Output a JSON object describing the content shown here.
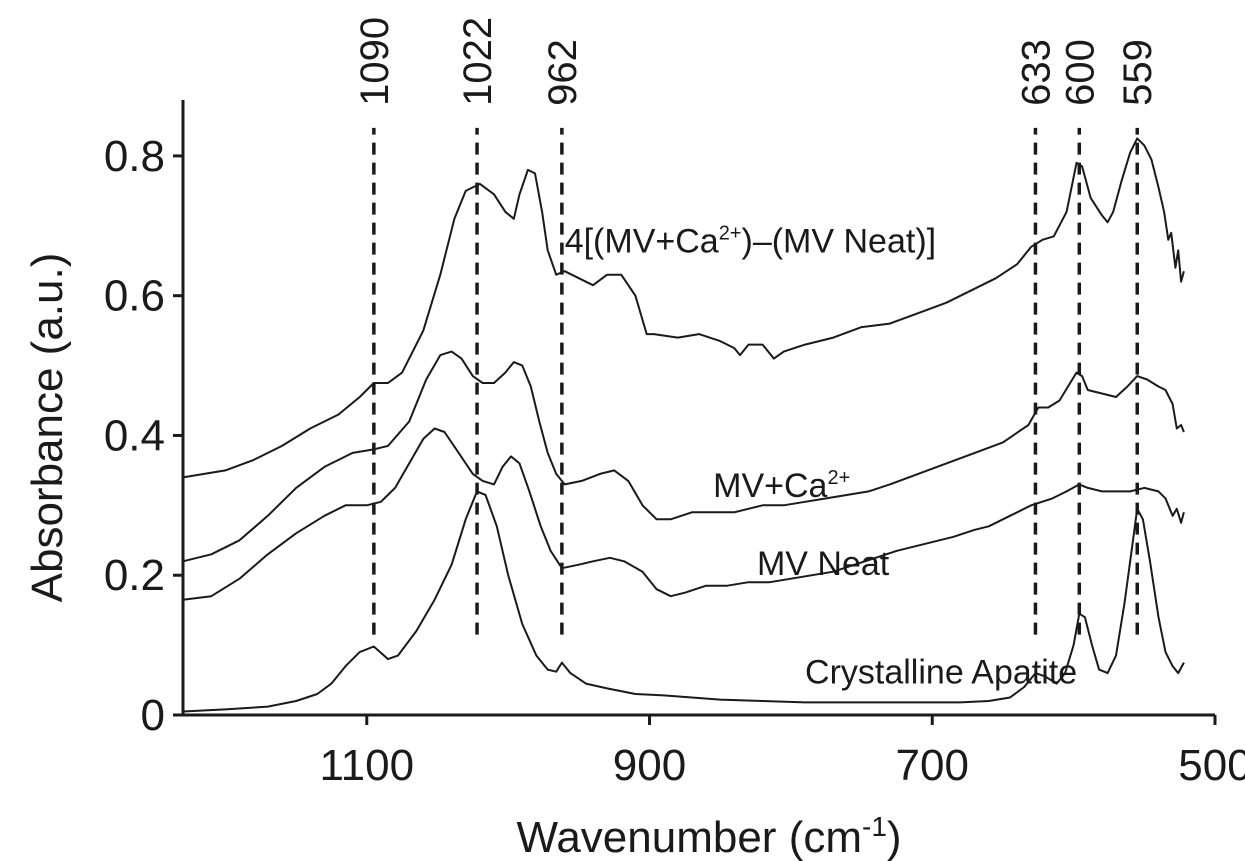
{
  "chart_data": {
    "type": "line",
    "title": "",
    "xlabel": "Wavenumber (cm",
    "xlabel_sup": "-1",
    "xlabel_end": ")",
    "ylabel": "Absorbance (a.u.)",
    "x_reversed": true,
    "xlim": [
      1230,
      500
    ],
    "ylim": [
      0,
      0.88
    ],
    "x_ticks": [
      1100,
      900,
      700,
      500
    ],
    "y_ticks": [
      0,
      0.2,
      0.4,
      0.6,
      0.8
    ],
    "y_tick_labels": [
      "0",
      "0.2",
      "0.4",
      "0.6",
      "0.8"
    ],
    "peak_lines": [
      {
        "label": "1090",
        "x": 1095,
        "top_y": 0.8
      },
      {
        "label": "1022",
        "x": 1022,
        "top_y": 0.8
      },
      {
        "label": "962",
        "x": 962,
        "top_y": 0.8
      },
      {
        "label": "633",
        "x": 627,
        "top_y": 0.8
      },
      {
        "label": "600",
        "x": 596,
        "top_y": 0.8
      },
      {
        "label": "559",
        "x": 555,
        "top_y": 0.8
      }
    ],
    "series": [
      {
        "name": "4[(MV+Ca",
        "label_sup": "2+",
        "label_end": ")–(MV Neat)]",
        "label_x": 960,
        "label_y": 0.662,
        "points": [
          [
            1230,
            0.34
          ],
          [
            1200,
            0.35
          ],
          [
            1180,
            0.365
          ],
          [
            1160,
            0.385
          ],
          [
            1140,
            0.41
          ],
          [
            1120,
            0.43
          ],
          [
            1105,
            0.455
          ],
          [
            1095,
            0.475
          ],
          [
            1085,
            0.475
          ],
          [
            1075,
            0.49
          ],
          [
            1060,
            0.55
          ],
          [
            1048,
            0.63
          ],
          [
            1038,
            0.71
          ],
          [
            1030,
            0.75
          ],
          [
            1020,
            0.76
          ],
          [
            1010,
            0.745
          ],
          [
            1002,
            0.72
          ],
          [
            996,
            0.71
          ],
          [
            992,
            0.745
          ],
          [
            986,
            0.78
          ],
          [
            981,
            0.775
          ],
          [
            976,
            0.72
          ],
          [
            972,
            0.665
          ],
          [
            966,
            0.63
          ],
          [
            960,
            0.635
          ],
          [
            950,
            0.625
          ],
          [
            940,
            0.615
          ],
          [
            930,
            0.63
          ],
          [
            920,
            0.63
          ],
          [
            910,
            0.6
          ],
          [
            902,
            0.545
          ],
          [
            897,
            0.545
          ],
          [
            880,
            0.54
          ],
          [
            865,
            0.545
          ],
          [
            850,
            0.535
          ],
          [
            840,
            0.525
          ],
          [
            836,
            0.515
          ],
          [
            830,
            0.53
          ],
          [
            820,
            0.53
          ],
          [
            812,
            0.51
          ],
          [
            805,
            0.52
          ],
          [
            790,
            0.53
          ],
          [
            770,
            0.54
          ],
          [
            750,
            0.555
          ],
          [
            730,
            0.56
          ],
          [
            710,
            0.575
          ],
          [
            690,
            0.59
          ],
          [
            670,
            0.61
          ],
          [
            655,
            0.625
          ],
          [
            640,
            0.645
          ],
          [
            630,
            0.67
          ],
          [
            622,
            0.68
          ],
          [
            614,
            0.685
          ],
          [
            605,
            0.72
          ],
          [
            598,
            0.79
          ],
          [
            594,
            0.785
          ],
          [
            588,
            0.74
          ],
          [
            580,
            0.715
          ],
          [
            576,
            0.705
          ],
          [
            572,
            0.72
          ],
          [
            566,
            0.765
          ],
          [
            560,
            0.805
          ],
          [
            555,
            0.825
          ],
          [
            550,
            0.815
          ],
          [
            545,
            0.795
          ],
          [
            540,
            0.755
          ],
          [
            536,
            0.72
          ],
          [
            533,
            0.68
          ],
          [
            531,
            0.69
          ],
          [
            528,
            0.64
          ],
          [
            526,
            0.665
          ],
          [
            524,
            0.62
          ],
          [
            522,
            0.635
          ]
        ]
      },
      {
        "name": "MV+Ca",
        "label_sup": "2+",
        "label_end": "",
        "label_x": 855,
        "label_y": 0.312,
        "points": [
          [
            1230,
            0.22
          ],
          [
            1210,
            0.23
          ],
          [
            1190,
            0.25
          ],
          [
            1170,
            0.285
          ],
          [
            1150,
            0.325
          ],
          [
            1130,
            0.355
          ],
          [
            1110,
            0.375
          ],
          [
            1095,
            0.38
          ],
          [
            1085,
            0.385
          ],
          [
            1070,
            0.42
          ],
          [
            1058,
            0.48
          ],
          [
            1048,
            0.515
          ],
          [
            1040,
            0.52
          ],
          [
            1033,
            0.51
          ],
          [
            1025,
            0.485
          ],
          [
            1018,
            0.475
          ],
          [
            1010,
            0.475
          ],
          [
            1002,
            0.49
          ],
          [
            996,
            0.505
          ],
          [
            990,
            0.5
          ],
          [
            984,
            0.47
          ],
          [
            978,
            0.42
          ],
          [
            972,
            0.375
          ],
          [
            966,
            0.345
          ],
          [
            960,
            0.33
          ],
          [
            948,
            0.335
          ],
          [
            935,
            0.345
          ],
          [
            925,
            0.35
          ],
          [
            915,
            0.335
          ],
          [
            905,
            0.3
          ],
          [
            895,
            0.28
          ],
          [
            885,
            0.28
          ],
          [
            870,
            0.29
          ],
          [
            855,
            0.29
          ],
          [
            840,
            0.29
          ],
          [
            820,
            0.3
          ],
          [
            805,
            0.3
          ],
          [
            790,
            0.305
          ],
          [
            775,
            0.31
          ],
          [
            760,
            0.315
          ],
          [
            745,
            0.32
          ],
          [
            730,
            0.33
          ],
          [
            710,
            0.345
          ],
          [
            690,
            0.36
          ],
          [
            670,
            0.375
          ],
          [
            650,
            0.39
          ],
          [
            632,
            0.415
          ],
          [
            625,
            0.44
          ],
          [
            618,
            0.44
          ],
          [
            610,
            0.45
          ],
          [
            604,
            0.47
          ],
          [
            598,
            0.49
          ],
          [
            594,
            0.485
          ],
          [
            590,
            0.465
          ],
          [
            580,
            0.46
          ],
          [
            570,
            0.455
          ],
          [
            562,
            0.47
          ],
          [
            555,
            0.485
          ],
          [
            548,
            0.48
          ],
          [
            540,
            0.47
          ],
          [
            535,
            0.465
          ],
          [
            530,
            0.445
          ],
          [
            527,
            0.41
          ],
          [
            524,
            0.415
          ],
          [
            522,
            0.405
          ]
        ]
      },
      {
        "name": "MV Neat",
        "label_sup": "",
        "label_end": "",
        "label_x": 824,
        "label_y": 0.2,
        "points": [
          [
            1230,
            0.165
          ],
          [
            1210,
            0.17
          ],
          [
            1190,
            0.195
          ],
          [
            1170,
            0.23
          ],
          [
            1150,
            0.26
          ],
          [
            1130,
            0.285
          ],
          [
            1115,
            0.3
          ],
          [
            1100,
            0.3
          ],
          [
            1090,
            0.305
          ],
          [
            1080,
            0.325
          ],
          [
            1070,
            0.36
          ],
          [
            1060,
            0.395
          ],
          [
            1052,
            0.41
          ],
          [
            1045,
            0.405
          ],
          [
            1035,
            0.375
          ],
          [
            1025,
            0.345
          ],
          [
            1018,
            0.335
          ],
          [
            1010,
            0.33
          ],
          [
            1004,
            0.355
          ],
          [
            998,
            0.37
          ],
          [
            992,
            0.36
          ],
          [
            985,
            0.32
          ],
          [
            977,
            0.27
          ],
          [
            970,
            0.235
          ],
          [
            962,
            0.21
          ],
          [
            950,
            0.215
          ],
          [
            940,
            0.22
          ],
          [
            928,
            0.225
          ],
          [
            918,
            0.22
          ],
          [
            905,
            0.205
          ],
          [
            895,
            0.18
          ],
          [
            885,
            0.17
          ],
          [
            875,
            0.175
          ],
          [
            860,
            0.185
          ],
          [
            845,
            0.185
          ],
          [
            830,
            0.19
          ],
          [
            815,
            0.19
          ],
          [
            800,
            0.195
          ],
          [
            785,
            0.2
          ],
          [
            770,
            0.205
          ],
          [
            755,
            0.215
          ],
          [
            740,
            0.225
          ],
          [
            725,
            0.235
          ],
          [
            705,
            0.245
          ],
          [
            685,
            0.255
          ],
          [
            670,
            0.265
          ],
          [
            660,
            0.27
          ],
          [
            645,
            0.285
          ],
          [
            630,
            0.3
          ],
          [
            615,
            0.31
          ],
          [
            605,
            0.32
          ],
          [
            596,
            0.33
          ],
          [
            590,
            0.325
          ],
          [
            580,
            0.32
          ],
          [
            570,
            0.32
          ],
          [
            560,
            0.32
          ],
          [
            550,
            0.325
          ],
          [
            540,
            0.32
          ],
          [
            535,
            0.31
          ],
          [
            530,
            0.285
          ],
          [
            527,
            0.295
          ],
          [
            524,
            0.275
          ],
          [
            522,
            0.29
          ]
        ]
      },
      {
        "name": "Crystalline Apatite",
        "label_sup": "",
        "label_end": "",
        "label_x": 790,
        "label_y": 0.045,
        "points": [
          [
            1230,
            0.005
          ],
          [
            1200,
            0.008
          ],
          [
            1170,
            0.012
          ],
          [
            1150,
            0.02
          ],
          [
            1135,
            0.03
          ],
          [
            1125,
            0.045
          ],
          [
            1115,
            0.07
          ],
          [
            1105,
            0.09
          ],
          [
            1095,
            0.098
          ],
          [
            1085,
            0.08
          ],
          [
            1078,
            0.085
          ],
          [
            1065,
            0.12
          ],
          [
            1052,
            0.165
          ],
          [
            1040,
            0.215
          ],
          [
            1030,
            0.28
          ],
          [
            1022,
            0.32
          ],
          [
            1016,
            0.315
          ],
          [
            1008,
            0.27
          ],
          [
            1000,
            0.2
          ],
          [
            990,
            0.13
          ],
          [
            980,
            0.085
          ],
          [
            972,
            0.065
          ],
          [
            966,
            0.062
          ],
          [
            962,
            0.075
          ],
          [
            956,
            0.06
          ],
          [
            945,
            0.045
          ],
          [
            930,
            0.038
          ],
          [
            910,
            0.03
          ],
          [
            890,
            0.028
          ],
          [
            870,
            0.025
          ],
          [
            850,
            0.022
          ],
          [
            820,
            0.02
          ],
          [
            790,
            0.018
          ],
          [
            760,
            0.018
          ],
          [
            730,
            0.018
          ],
          [
            700,
            0.018
          ],
          [
            680,
            0.018
          ],
          [
            660,
            0.02
          ],
          [
            645,
            0.025
          ],
          [
            635,
            0.04
          ],
          [
            627,
            0.06
          ],
          [
            620,
            0.055
          ],
          [
            612,
            0.045
          ],
          [
            606,
            0.06
          ],
          [
            600,
            0.1
          ],
          [
            596,
            0.145
          ],
          [
            592,
            0.14
          ],
          [
            587,
            0.1
          ],
          [
            582,
            0.065
          ],
          [
            576,
            0.06
          ],
          [
            570,
            0.085
          ],
          [
            564,
            0.16
          ],
          [
            558,
            0.25
          ],
          [
            555,
            0.295
          ],
          [
            551,
            0.28
          ],
          [
            546,
            0.22
          ],
          [
            540,
            0.14
          ],
          [
            535,
            0.09
          ],
          [
            530,
            0.07
          ],
          [
            526,
            0.06
          ],
          [
            522,
            0.075
          ]
        ]
      }
    ]
  }
}
